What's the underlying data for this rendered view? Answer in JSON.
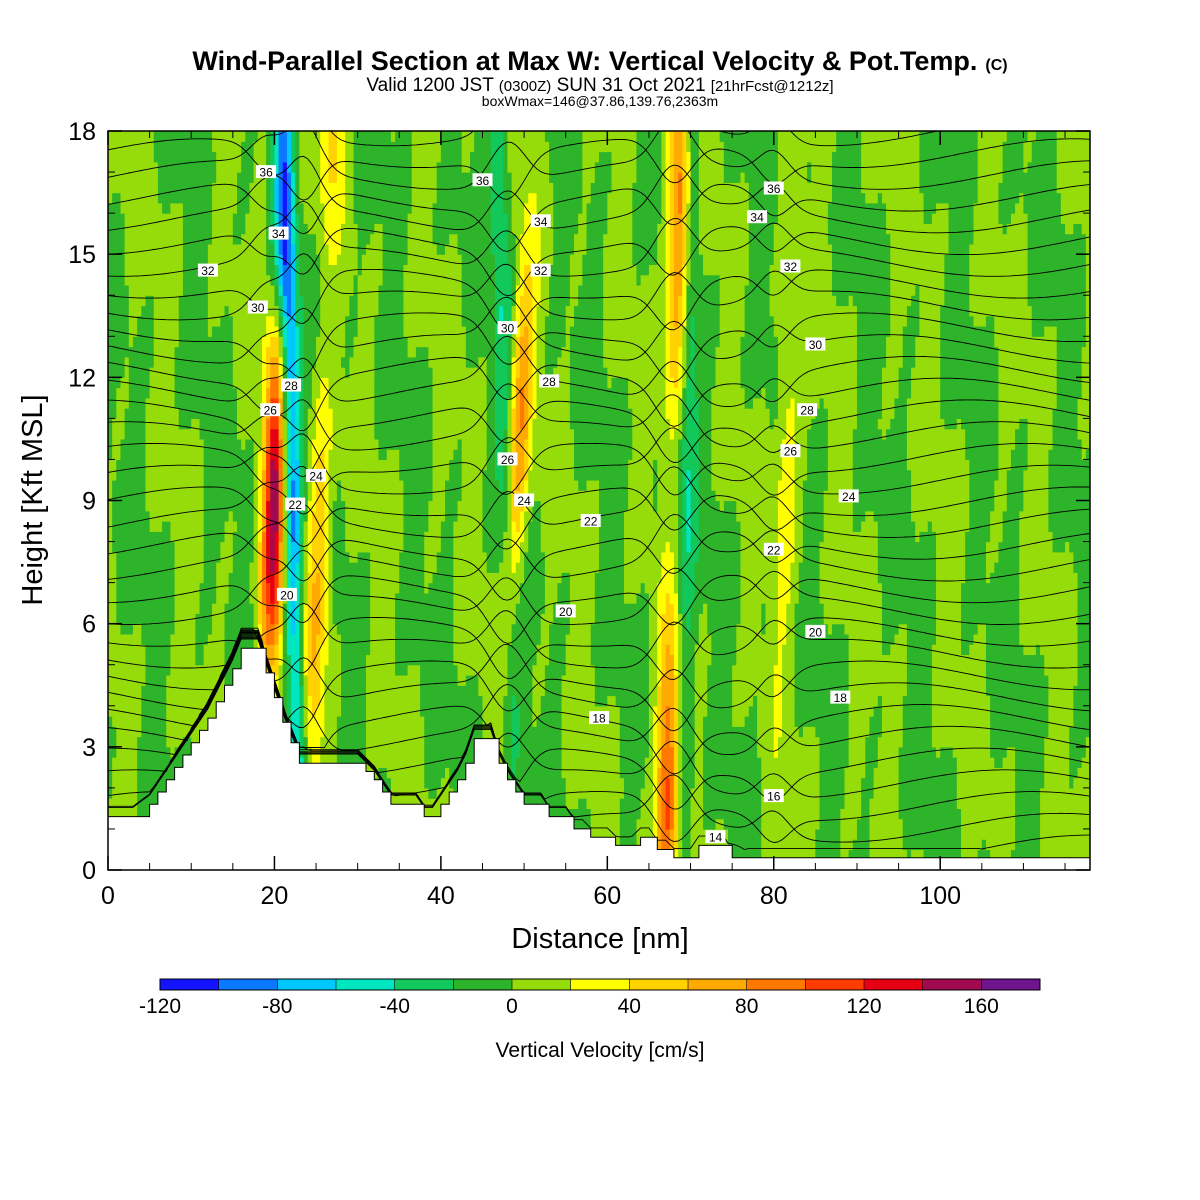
{
  "chart_data": {
    "type": "heatmap",
    "title": "Wind-Parallel Section at Max W: Vertical Velocity & Pot.Temp.",
    "copyright": "(C)",
    "subtitle": {
      "valid_prefix": "Valid 1200 JST",
      "utc": "(0300Z)",
      "date": "SUN 31 Oct 2021",
      "forecast": "[21hrFcst@1212z]"
    },
    "box_info": "boxWmax=146@37.86,139.76,2363m",
    "xlabel": "Distance [nm]",
    "ylabel": "Height [Kft MSL]",
    "xlim": [
      0,
      118
    ],
    "ylim": [
      0,
      18
    ],
    "x_ticks": [
      "0",
      "20",
      "40",
      "60",
      "80",
      "100"
    ],
    "y_ticks": [
      "0",
      "3",
      "6",
      "9",
      "12",
      "15",
      "18"
    ],
    "colorbar": {
      "title": "Vertical Velocity [cm/s]",
      "levels": [
        -120,
        -100,
        -80,
        -60,
        -40,
        -20,
        0,
        20,
        40,
        60,
        80,
        100,
        120,
        140,
        160,
        180
      ],
      "colors": [
        "#1414ff",
        "#0a78ff",
        "#00c8ff",
        "#00e6c0",
        "#12c85a",
        "#2eb42a",
        "#96dc0a",
        "#ffff00",
        "#ffd200",
        "#ffaa00",
        "#ff7800",
        "#ff3c00",
        "#e60014",
        "#a00a50",
        "#6e148c"
      ],
      "tick_labels": [
        "-120",
        "-80",
        "-40",
        "0",
        "40",
        "80",
        "120",
        "160"
      ]
    },
    "updraft_bands": [
      {
        "base_x": 19,
        "top_x": 21,
        "peak_cms": 150
      },
      {
        "base_x": 24,
        "top_x": 27,
        "peak_cms": 70
      },
      {
        "base_x": 47,
        "top_x": 51,
        "peak_cms": 80
      },
      {
        "base_x": 67,
        "top_x": 69,
        "peak_cms": 110
      },
      {
        "base_x": 80,
        "top_x": 83,
        "peak_cms": 40
      }
    ],
    "downdraft_bands": [
      {
        "base_x": 23,
        "top_x": 21,
        "min_cms": -120
      },
      {
        "base_x": 69,
        "top_x": 70,
        "min_cms": -50
      },
      {
        "base_x": 49,
        "top_x": 47,
        "min_cms": -40
      }
    ],
    "terrain_profile": {
      "x": [
        0,
        3,
        5,
        6,
        7,
        8,
        9,
        10,
        11,
        12,
        13,
        14,
        15,
        16,
        17,
        18,
        19,
        20,
        21,
        22,
        23,
        24,
        25,
        26,
        27,
        28,
        29,
        30,
        31,
        32,
        33,
        34,
        35,
        36,
        37,
        38,
        39,
        40,
        41,
        42,
        43,
        44,
        45,
        46,
        47,
        48,
        49,
        50,
        51,
        52,
        53,
        54,
        55,
        56,
        57,
        58,
        59,
        60,
        61,
        62,
        63,
        64,
        65,
        66,
        67,
        68,
        69,
        70,
        71,
        72,
        73,
        74,
        75,
        118
      ],
      "y": [
        1.3,
        1.3,
        1.6,
        1.9,
        2.2,
        2.5,
        2.8,
        3.1,
        3.4,
        3.7,
        4.1,
        4.5,
        4.9,
        5.4,
        5.4,
        5.4,
        4.8,
        4.2,
        3.6,
        3.1,
        2.6,
        2.6,
        2.6,
        2.6,
        2.6,
        2.6,
        2.6,
        2.6,
        2.4,
        2.2,
        1.9,
        1.6,
        1.6,
        1.6,
        1.6,
        1.3,
        1.3,
        1.6,
        1.9,
        2.2,
        2.6,
        3.2,
        3.2,
        3.2,
        2.6,
        2.2,
        1.9,
        1.6,
        1.6,
        1.6,
        1.3,
        1.3,
        1.3,
        1.0,
        1.0,
        0.8,
        0.8,
        0.8,
        0.6,
        0.6,
        0.6,
        0.8,
        0.8,
        0.5,
        0.5,
        0.3,
        0.3,
        0.3,
        0.6,
        0.6,
        0.6,
        0.6,
        0.3,
        0.3
      ]
    },
    "theta_contours": {
      "levels": [
        14,
        16,
        18,
        20,
        22,
        24,
        26,
        28,
        30,
        32,
        34,
        36
      ],
      "labels": [
        {
          "text": "36",
          "x": 19,
          "y": 17.0
        },
        {
          "text": "34",
          "x": 20.5,
          "y": 15.5
        },
        {
          "text": "32",
          "x": 12,
          "y": 14.6
        },
        {
          "text": "30",
          "x": 18,
          "y": 13.7
        },
        {
          "text": "28",
          "x": 22,
          "y": 11.8
        },
        {
          "text": "26",
          "x": 19.5,
          "y": 11.2
        },
        {
          "text": "24",
          "x": 25,
          "y": 9.6
        },
        {
          "text": "22",
          "x": 22.5,
          "y": 8.9
        },
        {
          "text": "20",
          "x": 21.5,
          "y": 6.7
        },
        {
          "text": "36",
          "x": 45,
          "y": 16.8
        },
        {
          "text": "34",
          "x": 52,
          "y": 15.8
        },
        {
          "text": "32",
          "x": 52,
          "y": 14.6
        },
        {
          "text": "30",
          "x": 48,
          "y": 13.2
        },
        {
          "text": "28",
          "x": 53,
          "y": 11.9
        },
        {
          "text": "26",
          "x": 48,
          "y": 10.0
        },
        {
          "text": "24",
          "x": 50,
          "y": 9.0
        },
        {
          "text": "22",
          "x": 58,
          "y": 8.5
        },
        {
          "text": "20",
          "x": 55,
          "y": 6.3
        },
        {
          "text": "18",
          "x": 59,
          "y": 3.7
        },
        {
          "text": "36",
          "x": 80,
          "y": 16.6
        },
        {
          "text": "34",
          "x": 78,
          "y": 15.9
        },
        {
          "text": "32",
          "x": 82,
          "y": 14.7
        },
        {
          "text": "30",
          "x": 85,
          "y": 12.8
        },
        {
          "text": "28",
          "x": 84,
          "y": 11.2
        },
        {
          "text": "26",
          "x": 82,
          "y": 10.2
        },
        {
          "text": "24",
          "x": 89,
          "y": 9.1
        },
        {
          "text": "22",
          "x": 80,
          "y": 7.8
        },
        {
          "text": "20",
          "x": 85,
          "y": 5.8
        },
        {
          "text": "18",
          "x": 88,
          "y": 4.2
        },
        {
          "text": "16",
          "x": 80,
          "y": 1.8
        },
        {
          "text": "14",
          "x": 73,
          "y": 0.8
        }
      ]
    }
  }
}
